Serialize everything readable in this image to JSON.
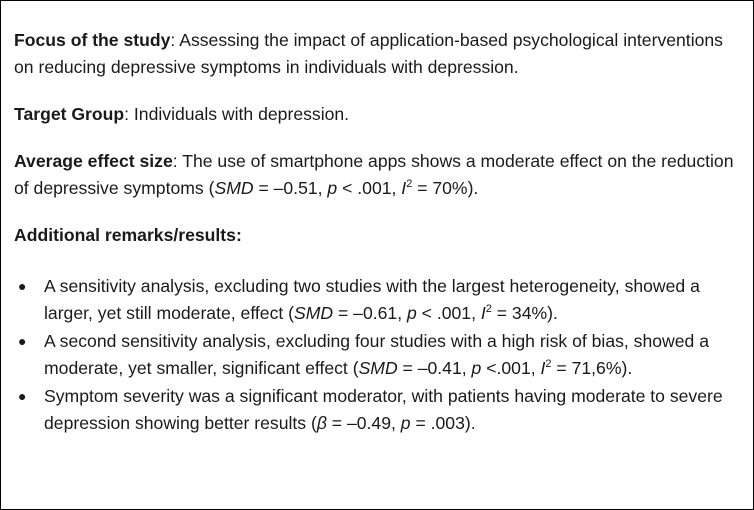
{
  "focus": {
    "label": "Focus of the study",
    "sep": ": ",
    "text": "Assessing the impact of application-based psychological interventions on reducing depressive symptoms in individuals with depression."
  },
  "target": {
    "label": "Target Group",
    "sep": ": ",
    "text": "Individuals with depression."
  },
  "effect": {
    "label": "Average effect size",
    "sep": ": ",
    "text_before": "The use of smartphone apps shows a moderate effect on the reduction of depressive symptoms (",
    "smd_label": "SMD",
    "smd_value": " = –0.51, ",
    "p_label": "p",
    "p_value": " < .001, ",
    "i_label": "I",
    "i_sup": "2",
    "i_value": " = 70%)."
  },
  "remarks": {
    "heading": "Additional remarks/results:",
    "bullet_glyph": "●",
    "items": [
      {
        "before": "A sensitivity analysis, excluding two studies with the largest heterogeneity, showed a larger, yet still moderate, effect (",
        "smd_label": "SMD",
        "smd_value": " = –0.61, ",
        "p_label": "p",
        "p_value": " < .001, ",
        "i_label": "I",
        "i_sup": "2",
        "i_value": " = 34%)."
      },
      {
        "before": "A second sensitivity analysis, excluding four studies with a high risk of bias, showed a moderate, yet smaller, significant effect (",
        "smd_label": "SMD",
        "smd_value": " = –0.41, ",
        "p_label": "p",
        "p_value": " <.001, ",
        "i_label": "I",
        "i_sup": "2",
        "i_value": " = 71,6%)."
      },
      {
        "before": "Symptom severity was a significant moderator, with patients having moderate to severe depression showing better results (",
        "beta_label": "β",
        "beta_value": " = –0.49, ",
        "p_label": "p",
        "p_value": " = .003)."
      }
    ]
  }
}
